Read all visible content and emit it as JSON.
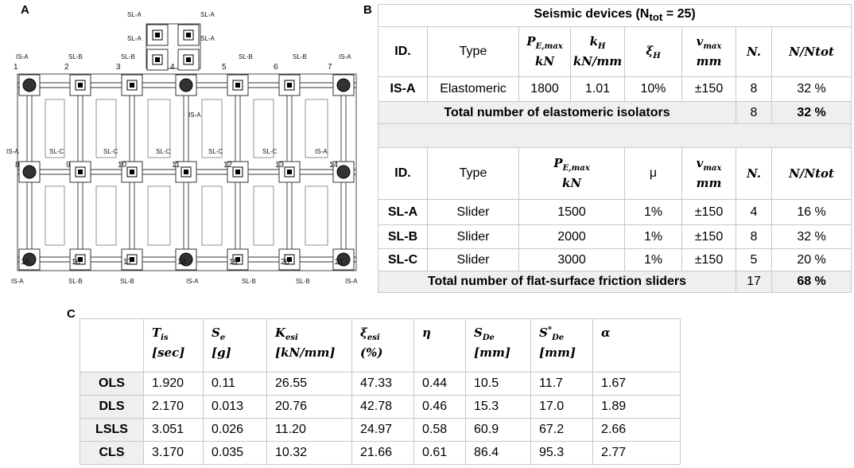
{
  "panels": {
    "a": "A",
    "b": "B",
    "c": "C"
  },
  "plan": {
    "appendix_labels": [
      "SL-A",
      "SL-A",
      "SL-A",
      "SL-A"
    ],
    "top_labels": [
      "IS-A",
      "SL-B",
      "SL-B",
      "SL-B",
      "SL-B",
      "IS-A"
    ],
    "middle_labels": [
      "IS-A",
      "SL-C",
      "SL-C",
      "SL-C",
      "SL-C",
      "SL-C",
      "IS-A"
    ],
    "center_label": "IS-A",
    "bottom_labels": [
      "IS-A",
      "SL-B",
      "SL-B",
      "IS-A",
      "SL-B",
      "SL-B",
      "IS-A"
    ],
    "nodes": [
      "1",
      "2",
      "3",
      "4",
      "5",
      "6",
      "7",
      "8",
      "9",
      "10",
      "11",
      "12",
      "13",
      "14",
      "15",
      "16",
      "17",
      "18",
      "19",
      "20",
      "21"
    ]
  },
  "table_b": {
    "title": {
      "text": "Seismic devices (N",
      "sub": "tot",
      "rest": " = 25)"
    },
    "header_1": [
      "ID.",
      "Type",
      {
        "sym": "P",
        "sub": "E,max",
        "unit": "kN"
      },
      {
        "sym": "k",
        "sub": "H",
        "unit": "kN/mm"
      },
      {
        "sym": "ξ",
        "sub": "H"
      },
      {
        "sym": "v",
        "sub": "max",
        "unit": "mm"
      },
      {
        "sym": "N."
      },
      {
        "sym": "N/Ntot"
      }
    ],
    "rows_1": [
      [
        "IS-A",
        "Elastomeric",
        "1800",
        "1.01",
        "10%",
        "±150",
        "8",
        "32 %"
      ]
    ],
    "total_1": [
      "Total number of elastomeric isolators",
      "8",
      "32 %"
    ],
    "header_2": [
      "ID.",
      "Type",
      {
        "sym": "P",
        "sub": "E,max",
        "unit": "kN"
      },
      "μ",
      {
        "sym": "v",
        "sub": "max",
        "unit": "mm"
      },
      {
        "sym": "N."
      },
      {
        "sym": "N/Ntot"
      }
    ],
    "rows_2": [
      [
        "SL-A",
        "Slider",
        "1500",
        "1%",
        "±150",
        "4",
        "16 %"
      ],
      [
        "SL-B",
        "Slider",
        "2000",
        "1%",
        "±150",
        "8",
        "32 %"
      ],
      [
        "SL-C",
        "Slider",
        "3000",
        "1%",
        "±150",
        "5",
        "20 %"
      ]
    ],
    "total_2": [
      "Total number of flat-surface friction sliders",
      "17",
      "68 %"
    ]
  },
  "table_c": {
    "header": [
      {
        "sym": "T",
        "sub": "is",
        "unit": "[sec]"
      },
      {
        "sym": "S",
        "sub": "e",
        "unit": "[g]"
      },
      {
        "sym": "K",
        "sub": "esi",
        "unit": "[kN/mm]"
      },
      {
        "sym": "ξ",
        "sub": "esi",
        "unit": "(%)"
      },
      {
        "sym": "η"
      },
      {
        "sym": "S",
        "sub": "De",
        "unit": "[mm]"
      },
      {
        "sym": "S",
        "sup": "*",
        "sub": "De",
        "unit": "[mm]"
      },
      {
        "sym": "α"
      }
    ],
    "rows": [
      [
        "OLS",
        "1.920",
        "0.11",
        "26.55",
        "47.33",
        "0.44",
        "10.5",
        "11.7",
        "1.67"
      ],
      [
        "DLS",
        "2.170",
        "0.013",
        "20.76",
        "42.78",
        "0.46",
        "15.3",
        "17.0",
        "1.89"
      ],
      [
        "LSLS",
        "3.051",
        "0.026",
        "11.20",
        "24.97",
        "0.58",
        "60.9",
        "67.2",
        "2.66"
      ],
      [
        "CLS",
        "3.170",
        "0.035",
        "10.32",
        "21.66",
        "0.61",
        "86.4",
        "95.3",
        "2.77"
      ]
    ]
  }
}
